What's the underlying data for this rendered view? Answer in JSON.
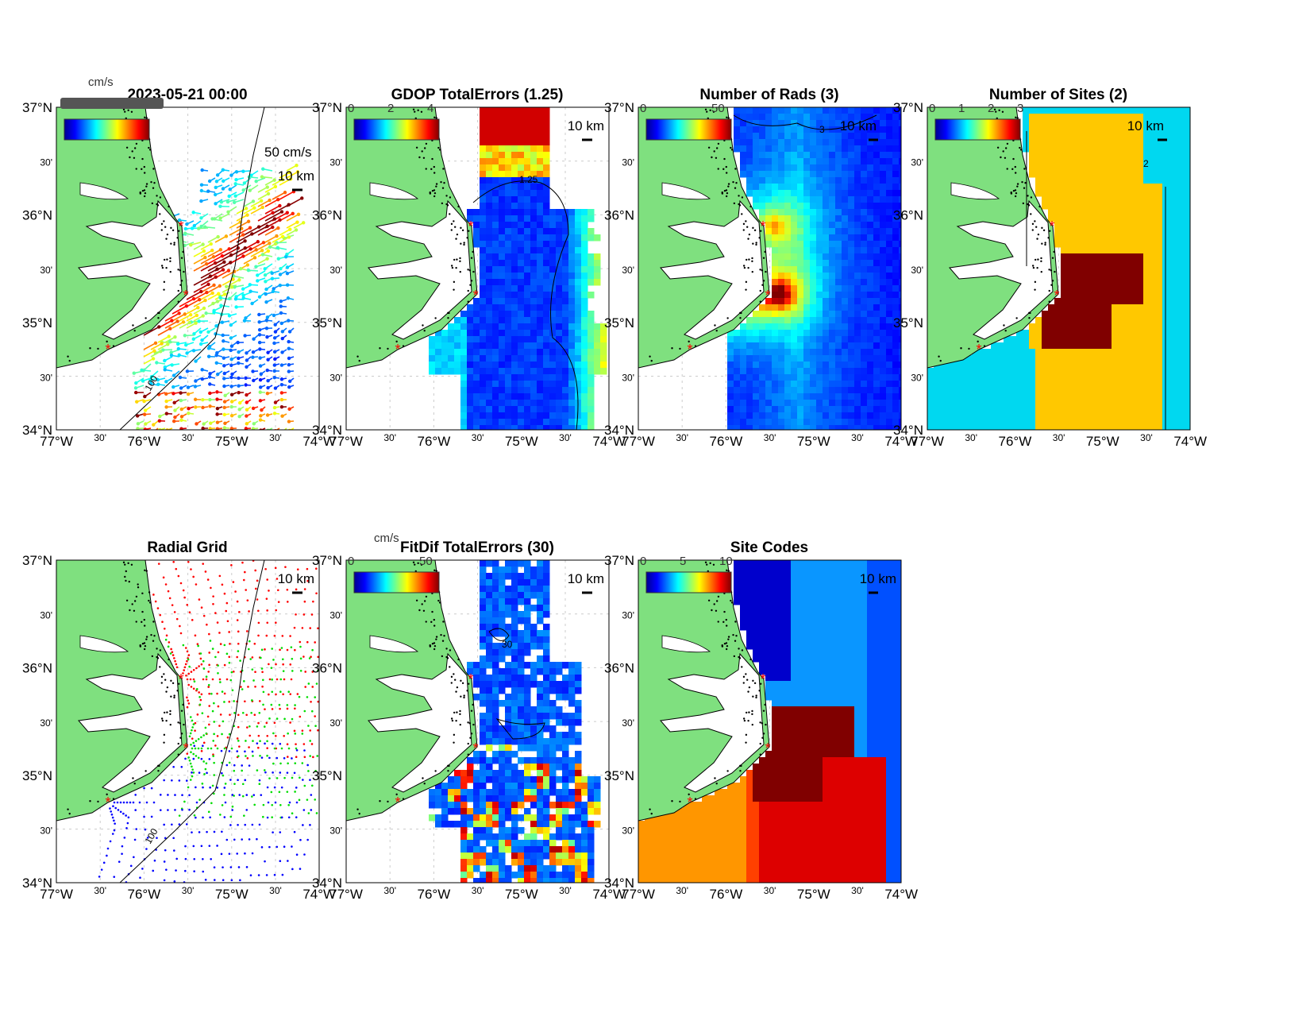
{
  "figure": {
    "lat_ticks": [
      "37°N",
      "30'",
      "36°N",
      "30'",
      "35°N",
      "30'",
      "34°N"
    ],
    "lon_ticks": [
      "77°W",
      "30'",
      "76°W",
      "30'",
      "75°W",
      "30'",
      "74°W"
    ],
    "scale_label": "10 km",
    "land_color": "#7fe07f",
    "site_marker_color": "#ff0000"
  },
  "panels": [
    {
      "title": "2023-05-21 00:00",
      "units": "cm/s",
      "colorbar_ticks": [],
      "vector_scale_label": "50 cm/s",
      "contour_label": "100"
    },
    {
      "title": "GDOP TotalErrors (1.25)",
      "colorbar_ticks": [
        "0",
        "2",
        "4"
      ],
      "contour_label": "1.25"
    },
    {
      "title": "Number of Rads (3)",
      "colorbar_ticks": [
        "0",
        "50"
      ],
      "contour_label": "3"
    },
    {
      "title": "Number of Sites (2)",
      "colorbar_ticks": [
        "0",
        "1",
        "2",
        "3"
      ],
      "contour_label": "2"
    },
    {
      "title": "Radial Grid",
      "contour_label": "100"
    },
    {
      "title": "FitDif TotalErrors (30)",
      "units": "cm/s",
      "colorbar_ticks": [
        "0",
        "50"
      ],
      "contour_label": "30"
    },
    {
      "title": "Site Codes",
      "colorbar_ticks": [
        "0",
        "5",
        "10"
      ]
    }
  ]
}
